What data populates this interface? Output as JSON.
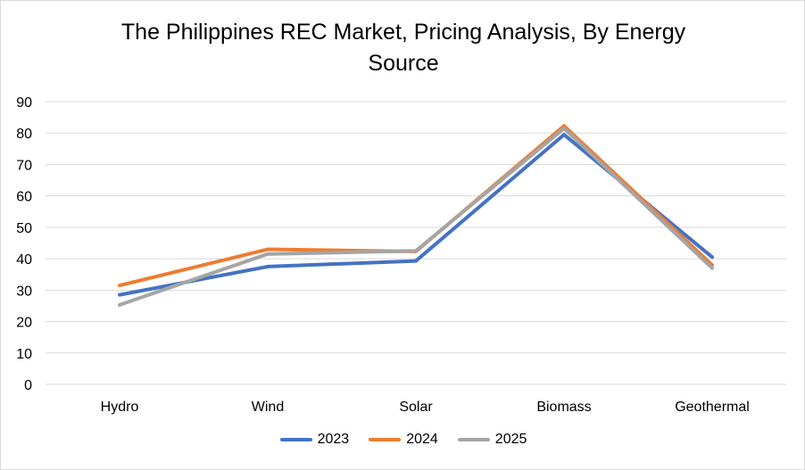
{
  "chart_data": {
    "type": "line",
    "title_line1": "The Philippines REC Market, Pricing Analysis, By Energy",
    "title_line2": "Source",
    "categories": [
      "Hydro",
      "Wind",
      "Solar",
      "Biomass",
      "Geothermal"
    ],
    "ylim": [
      0,
      90
    ],
    "yticks": [
      0,
      10,
      20,
      30,
      40,
      50,
      60,
      70,
      80,
      90
    ],
    "grid": true,
    "legend_position": "bottom",
    "series": [
      {
        "name": "2023",
        "color": "#4472C4",
        "values": [
          28.5,
          37.5,
          39.3,
          79.5,
          40.5
        ]
      },
      {
        "name": "2024",
        "color": "#ED7D31",
        "values": [
          31.5,
          43.0,
          42.3,
          82.3,
          38.0
        ]
      },
      {
        "name": "2025",
        "color": "#A5A5A5",
        "values": [
          25.3,
          41.5,
          42.5,
          81.5,
          37.0
        ]
      }
    ]
  }
}
